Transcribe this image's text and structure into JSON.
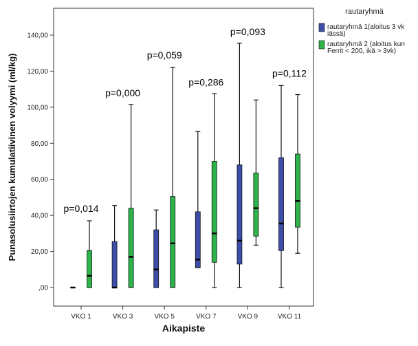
{
  "chart_data": {
    "type": "boxplot",
    "xlabel": "Aikapiste",
    "ylabel": "Punasolusiirtojen kumulatiivinen volyymi (ml/kg)",
    "categories": [
      "VKO 1",
      "VKO 3",
      "VKO 5",
      "VKO 7",
      "VKO 9",
      "VKO 11"
    ],
    "ylim": [
      0,
      150
    ],
    "yticks": [
      ",00",
      "20,00",
      "40,00",
      "60,00",
      "80,00",
      "100,00",
      "120,00",
      "140,00"
    ],
    "ytick_values": [
      0,
      20,
      40,
      60,
      80,
      100,
      120,
      140
    ],
    "legend": {
      "title": "rautaryhmä",
      "placement": "right",
      "entries": [
        [
          "rautaryhmä 1(aloitus 3 vk",
          "iässä)"
        ],
        [
          "rautaryhmä 2 (aloitus kun",
          "Ferrit < 200, ikä > 3vk)"
        ]
      ]
    },
    "series": [
      {
        "name": "rautaryhmä 1(aloitus 3 vk iässä)",
        "color": "#3d4fa8",
        "boxes": [
          {
            "min": 0,
            "q1": 0,
            "median": 0,
            "q3": 0,
            "max": 0
          },
          {
            "min": 0,
            "q1": 0,
            "median": 0,
            "q3": 25.5,
            "max": 45.5
          },
          {
            "min": 0,
            "q1": 0,
            "median": 10,
            "q3": 32,
            "max": 43
          },
          {
            "min": 11,
            "q1": 11,
            "median": 15.5,
            "q3": 42,
            "max": 86.5
          },
          {
            "min": 0,
            "q1": 13,
            "median": 26,
            "q3": 68,
            "max": 135.5
          },
          {
            "min": 0,
            "q1": 20.5,
            "median": 35.5,
            "q3": 72,
            "max": 112
          }
        ]
      },
      {
        "name": "rautaryhmä 2 (aloitus kun Ferrit < 200, ikä > 3vk)",
        "color": "#2db34a",
        "boxes": [
          {
            "min": 0,
            "q1": 0,
            "median": 6.5,
            "q3": 20.5,
            "max": 37
          },
          {
            "min": 0,
            "q1": 0,
            "median": 17,
            "q3": 44,
            "max": 101.5
          },
          {
            "min": 0,
            "q1": 0,
            "median": 24.5,
            "q3": 50.5,
            "max": 122
          },
          {
            "min": 0,
            "q1": 14,
            "median": 30,
            "q3": 70,
            "max": 107.5
          },
          {
            "min": 23.5,
            "q1": 28.5,
            "median": 44,
            "q3": 63.5,
            "max": 104
          },
          {
            "min": 19,
            "q1": 33.5,
            "median": 48,
            "q3": 74,
            "max": 107
          }
        ]
      }
    ],
    "annotations": [
      {
        "text": "p=0,014",
        "category": 0,
        "y": 42
      },
      {
        "text": "p=0,000",
        "category": 1,
        "y": 106
      },
      {
        "text": "p=0,059",
        "category": 2,
        "y": 127
      },
      {
        "text": "p=0,286",
        "category": 3,
        "y": 112
      },
      {
        "text": "p=0,093",
        "category": 4,
        "y": 140
      },
      {
        "text": "p=0,112",
        "category": 5,
        "y": 117
      }
    ]
  }
}
